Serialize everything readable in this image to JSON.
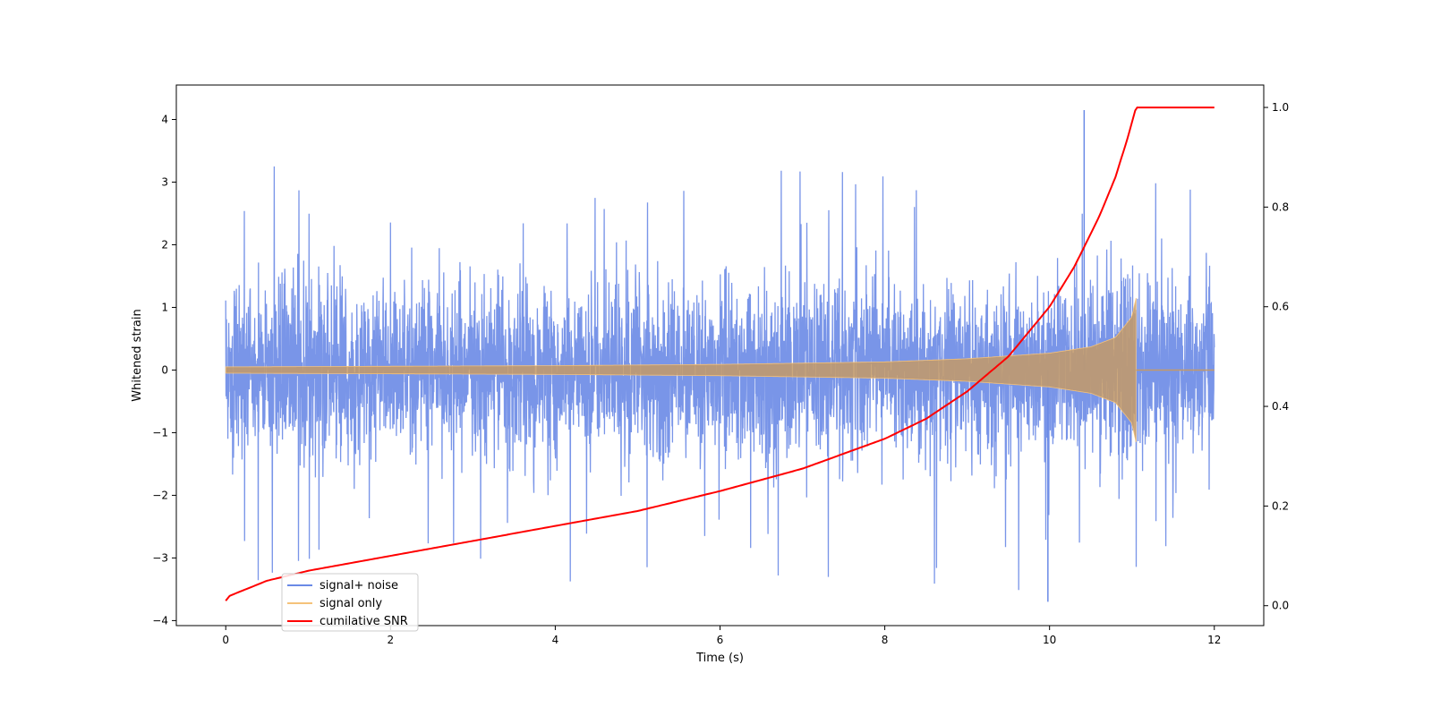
{
  "chart_data": {
    "type": "line",
    "xlabel": "Time (s)",
    "ylabel": "Whitened strain",
    "ylabel_right": "",
    "xlim": [
      -0.6,
      12.6
    ],
    "ylim": [
      -4.08,
      4.55
    ],
    "ylim_right": [
      -0.04,
      1.045
    ],
    "xticks": [
      0,
      2,
      4,
      6,
      8,
      10,
      12
    ],
    "yticks": [
      -4,
      -3,
      -2,
      -1,
      0,
      1,
      2,
      3,
      4
    ],
    "yticks_right": [
      0.0,
      0.2,
      0.4,
      0.6,
      0.8,
      1.0
    ],
    "xtick_labels": [
      "0",
      "2",
      "4",
      "6",
      "8",
      "10",
      "12"
    ],
    "ytick_labels": [
      "−4",
      "−3",
      "−2",
      "−1",
      "0",
      "1",
      "2",
      "3",
      "4"
    ],
    "ytick_right_labels": [
      "0.0",
      "0.2",
      "0.4",
      "0.6",
      "0.8",
      "1.0"
    ],
    "merger_time": 11.05,
    "series": [
      {
        "name": "signal+ noise",
        "color": "#6a8ae6",
        "axis": "left",
        "description_stats": {
          "x_range": [
            0,
            12
          ],
          "typical_band": [
            -2.0,
            2.2
          ],
          "max": 4.15,
          "max_at": 10.42,
          "min": -3.7,
          "min_at": 9.98
        }
      },
      {
        "name": "signal only",
        "color": "#f5c27a",
        "axis": "left",
        "amplitude_envelope": {
          "x": [
            0,
            2,
            4,
            6,
            8,
            9,
            10,
            10.5,
            10.8,
            11.0,
            11.05
          ],
          "amp": [
            0.05,
            0.06,
            0.07,
            0.09,
            0.13,
            0.18,
            0.27,
            0.37,
            0.52,
            0.85,
            1.15
          ]
        }
      },
      {
        "name": "cumilative SNR",
        "color": "#ff0000",
        "axis": "right",
        "x": [
          0,
          0.05,
          0.5,
          1,
          2,
          3,
          4,
          5,
          6,
          7,
          7.5,
          8,
          8.5,
          9,
          9.5,
          10,
          10.3,
          10.6,
          10.8,
          10.95,
          11.05,
          12
        ],
        "y": [
          0.01,
          0.02,
          0.05,
          0.07,
          0.1,
          0.13,
          0.16,
          0.19,
          0.23,
          0.275,
          0.305,
          0.335,
          0.375,
          0.43,
          0.5,
          0.6,
          0.68,
          0.78,
          0.86,
          0.94,
          1.0,
          1.0
        ]
      }
    ],
    "legend": {
      "placement": "lower-left"
    }
  }
}
